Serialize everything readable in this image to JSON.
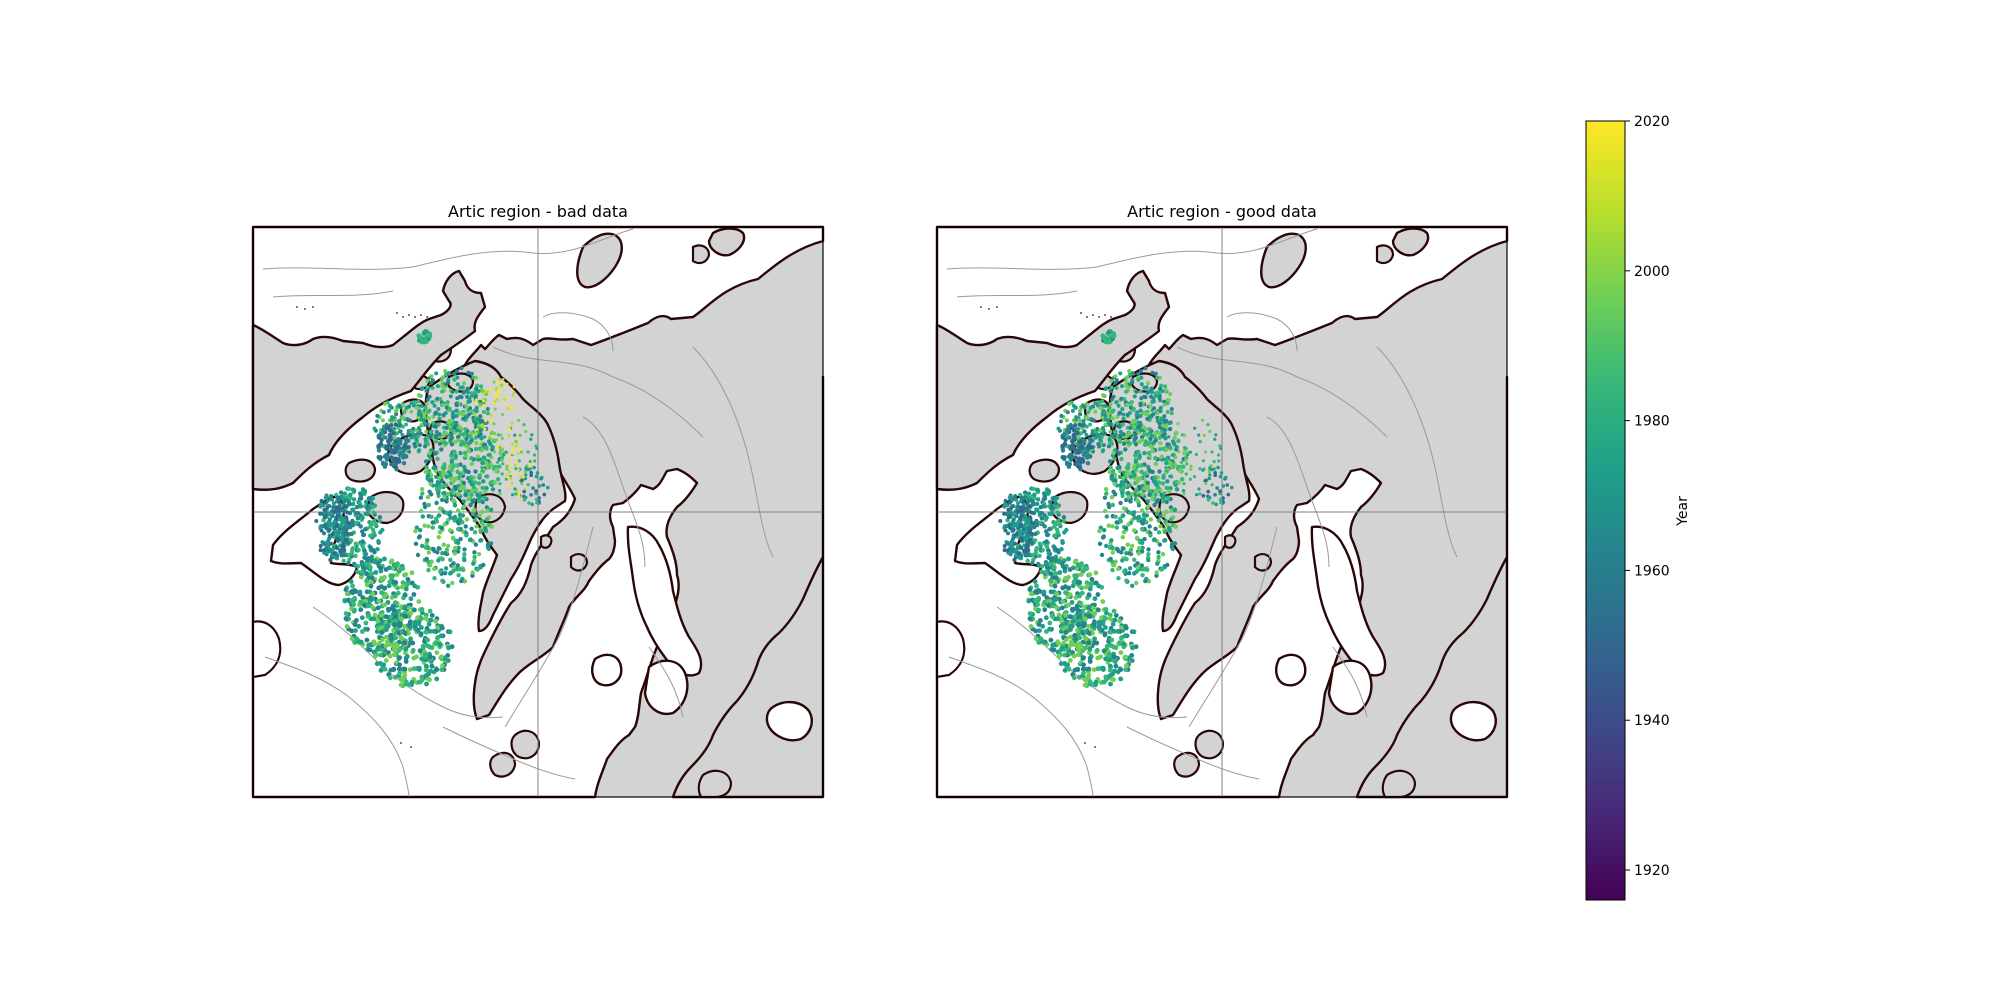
{
  "figure": {
    "panels": [
      {
        "title": "Artic region - bad data"
      },
      {
        "title": "Artic region - good data"
      }
    ]
  },
  "colorbar": {
    "label": "Year",
    "min": 1916,
    "max": 2020,
    "ticks": [
      "1920",
      "1940",
      "1960",
      "1980",
      "2000",
      "2020"
    ],
    "colormap": "viridis"
  },
  "colors": {
    "ocean_land_gray": "#d3d3d3",
    "coastline": "#2a0606",
    "bathymetry": "#9a9a9a",
    "frame": "#000000",
    "viridis": [
      "#440154",
      "#482878",
      "#3e4989",
      "#31688e",
      "#26828e",
      "#1f9e89",
      "#35b779",
      "#6ece58",
      "#b5de2b",
      "#fde725"
    ]
  }
}
